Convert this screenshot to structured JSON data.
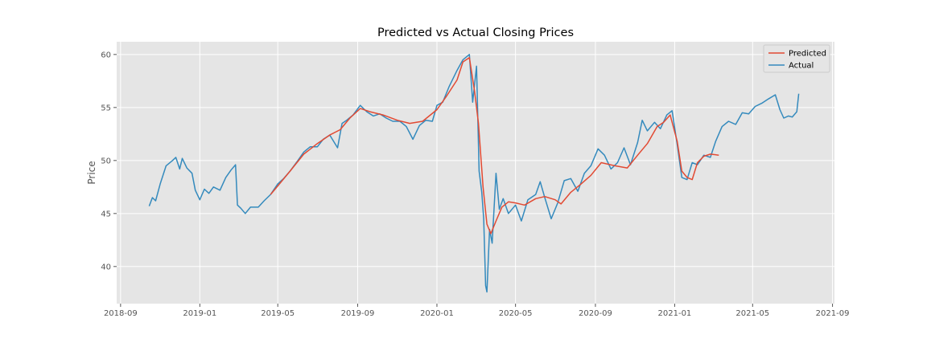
{
  "chart_data": {
    "type": "line",
    "title": "Predicted vs Actual Closing Prices",
    "xlabel": "",
    "ylabel": "Price",
    "xlim": [
      "2018-08-26",
      "2021-09-04"
    ],
    "ylim": [
      36.5,
      61.2
    ],
    "x_ticks": [
      "2018-09",
      "2019-01",
      "2019-05",
      "2019-09",
      "2020-01",
      "2020-05",
      "2020-09",
      "2021-01",
      "2021-05",
      "2021-09"
    ],
    "y_ticks": [
      40,
      45,
      50,
      55,
      60
    ],
    "grid": true,
    "legend_position": "top-right",
    "colors": {
      "background": "#e5e5e5",
      "grid": "#ffffff",
      "predicted": "#e24a33",
      "actual": "#348abd"
    },
    "series": [
      {
        "name": "Predicted",
        "color": "#e24a33",
        "points": [
          [
            "2019-04-20",
            46.8
          ],
          [
            "2019-05-01",
            47.6
          ],
          [
            "2019-05-20",
            49.0
          ],
          [
            "2019-06-10",
            50.6
          ],
          [
            "2019-07-01",
            51.6
          ],
          [
            "2019-07-20",
            52.4
          ],
          [
            "2019-08-05",
            52.9
          ],
          [
            "2019-08-20",
            54.0
          ],
          [
            "2019-09-05",
            54.9
          ],
          [
            "2019-09-20",
            54.6
          ],
          [
            "2019-10-10",
            54.3
          ],
          [
            "2019-11-01",
            53.8
          ],
          [
            "2019-11-20",
            53.5
          ],
          [
            "2019-12-10",
            53.7
          ],
          [
            "2020-01-01",
            54.8
          ],
          [
            "2020-01-15",
            56.0
          ],
          [
            "2020-02-01",
            57.6
          ],
          [
            "2020-02-10",
            59.3
          ],
          [
            "2020-02-20",
            59.7
          ],
          [
            "2020-02-28",
            56.5
          ],
          [
            "2020-03-05",
            53.5
          ],
          [
            "2020-03-12",
            47.5
          ],
          [
            "2020-03-18",
            44.0
          ],
          [
            "2020-03-24",
            43.1
          ],
          [
            "2020-04-01",
            44.3
          ],
          [
            "2020-04-10",
            45.6
          ],
          [
            "2020-04-20",
            46.1
          ],
          [
            "2020-05-01",
            46.0
          ],
          [
            "2020-05-15",
            45.8
          ],
          [
            "2020-06-01",
            46.4
          ],
          [
            "2020-06-15",
            46.6
          ],
          [
            "2020-07-01",
            46.3
          ],
          [
            "2020-07-10",
            45.9
          ],
          [
            "2020-07-25",
            47.0
          ],
          [
            "2020-08-10",
            47.8
          ],
          [
            "2020-08-25",
            48.6
          ],
          [
            "2020-09-10",
            49.8
          ],
          [
            "2020-10-01",
            49.5
          ],
          [
            "2020-10-20",
            49.3
          ],
          [
            "2020-11-05",
            50.5
          ],
          [
            "2020-11-20",
            51.6
          ],
          [
            "2020-12-05",
            53.2
          ],
          [
            "2020-12-15",
            53.6
          ],
          [
            "2020-12-25",
            54.3
          ],
          [
            "2021-01-05",
            51.8
          ],
          [
            "2021-01-12",
            49.0
          ],
          [
            "2021-01-20",
            48.4
          ],
          [
            "2021-01-28",
            48.2
          ],
          [
            "2021-02-05",
            49.8
          ],
          [
            "2021-02-15",
            50.4
          ],
          [
            "2021-02-25",
            50.6
          ],
          [
            "2021-03-10",
            50.5
          ]
        ]
      },
      {
        "name": "Actual",
        "color": "#348abd",
        "points": [
          [
            "2018-10-15",
            45.7
          ],
          [
            "2018-10-20",
            46.5
          ],
          [
            "2018-10-25",
            46.2
          ],
          [
            "2018-11-01",
            47.8
          ],
          [
            "2018-11-10",
            49.5
          ],
          [
            "2018-11-20",
            50.0
          ],
          [
            "2018-11-25",
            50.3
          ],
          [
            "2018-12-01",
            49.2
          ],
          [
            "2018-12-05",
            50.2
          ],
          [
            "2018-12-12",
            49.3
          ],
          [
            "2018-12-20",
            48.8
          ],
          [
            "2018-12-25",
            47.2
          ],
          [
            "2019-01-01",
            46.3
          ],
          [
            "2019-01-08",
            47.3
          ],
          [
            "2019-01-15",
            46.9
          ],
          [
            "2019-01-22",
            47.5
          ],
          [
            "2019-02-01",
            47.2
          ],
          [
            "2019-02-10",
            48.4
          ],
          [
            "2019-02-18",
            49.1
          ],
          [
            "2019-02-25",
            49.6
          ],
          [
            "2019-02-28",
            45.8
          ],
          [
            "2019-03-05",
            45.5
          ],
          [
            "2019-03-12",
            45.0
          ],
          [
            "2019-03-20",
            45.6
          ],
          [
            "2019-04-01",
            45.6
          ],
          [
            "2019-04-10",
            46.2
          ],
          [
            "2019-04-20",
            46.8
          ],
          [
            "2019-05-01",
            47.8
          ],
          [
            "2019-05-10",
            48.3
          ],
          [
            "2019-05-20",
            49.0
          ],
          [
            "2019-06-01",
            50.0
          ],
          [
            "2019-06-10",
            50.8
          ],
          [
            "2019-06-20",
            51.3
          ],
          [
            "2019-07-01",
            51.3
          ],
          [
            "2019-07-10",
            52.0
          ],
          [
            "2019-07-20",
            52.4
          ],
          [
            "2019-08-01",
            51.2
          ],
          [
            "2019-08-08",
            53.5
          ],
          [
            "2019-08-15",
            53.8
          ],
          [
            "2019-08-25",
            54.3
          ],
          [
            "2019-09-05",
            55.2
          ],
          [
            "2019-09-15",
            54.6
          ],
          [
            "2019-09-25",
            54.2
          ],
          [
            "2019-10-05",
            54.4
          ],
          [
            "2019-10-15",
            54.0
          ],
          [
            "2019-10-25",
            53.7
          ],
          [
            "2019-11-05",
            53.7
          ],
          [
            "2019-11-15",
            53.2
          ],
          [
            "2019-11-25",
            52.0
          ],
          [
            "2019-12-05",
            53.3
          ],
          [
            "2019-12-15",
            53.8
          ],
          [
            "2019-12-25",
            53.7
          ],
          [
            "2020-01-01",
            55.2
          ],
          [
            "2020-01-10",
            55.5
          ],
          [
            "2020-01-20",
            57.0
          ],
          [
            "2020-02-01",
            58.5
          ],
          [
            "2020-02-10",
            59.5
          ],
          [
            "2020-02-20",
            60.0
          ],
          [
            "2020-02-25",
            55.5
          ],
          [
            "2020-03-02",
            58.9
          ],
          [
            "2020-03-06",
            49.0
          ],
          [
            "2020-03-10",
            47.0
          ],
          [
            "2020-03-13",
            44.5
          ],
          [
            "2020-03-16",
            38.2
          ],
          [
            "2020-03-18",
            37.6
          ],
          [
            "2020-03-22",
            43.5
          ],
          [
            "2020-03-26",
            42.2
          ],
          [
            "2020-04-01",
            48.8
          ],
          [
            "2020-04-06",
            45.4
          ],
          [
            "2020-04-12",
            46.4
          ],
          [
            "2020-04-20",
            45.0
          ],
          [
            "2020-05-01",
            45.8
          ],
          [
            "2020-05-10",
            44.3
          ],
          [
            "2020-05-20",
            46.3
          ],
          [
            "2020-06-01",
            46.8
          ],
          [
            "2020-06-08",
            48.0
          ],
          [
            "2020-06-15",
            46.5
          ],
          [
            "2020-06-25",
            44.5
          ],
          [
            "2020-07-05",
            46.0
          ],
          [
            "2020-07-15",
            48.1
          ],
          [
            "2020-07-25",
            48.3
          ],
          [
            "2020-08-05",
            47.1
          ],
          [
            "2020-08-15",
            48.8
          ],
          [
            "2020-08-25",
            49.5
          ],
          [
            "2020-09-05",
            51.1
          ],
          [
            "2020-09-15",
            50.5
          ],
          [
            "2020-09-25",
            49.2
          ],
          [
            "2020-10-05",
            49.8
          ],
          [
            "2020-10-15",
            51.2
          ],
          [
            "2020-10-25",
            49.6
          ],
          [
            "2020-11-05",
            51.7
          ],
          [
            "2020-11-12",
            53.8
          ],
          [
            "2020-11-20",
            52.8
          ],
          [
            "2020-12-01",
            53.6
          ],
          [
            "2020-12-10",
            53.0
          ],
          [
            "2020-12-20",
            54.3
          ],
          [
            "2020-12-28",
            54.7
          ],
          [
            "2021-01-05",
            51.5
          ],
          [
            "2021-01-12",
            48.4
          ],
          [
            "2021-01-20",
            48.2
          ],
          [
            "2021-01-28",
            49.8
          ],
          [
            "2021-02-05",
            49.6
          ],
          [
            "2021-02-15",
            50.5
          ],
          [
            "2021-02-25",
            50.3
          ],
          [
            "2021-03-05",
            51.8
          ],
          [
            "2021-03-15",
            53.2
          ],
          [
            "2021-03-25",
            53.7
          ],
          [
            "2021-04-05",
            53.4
          ],
          [
            "2021-04-15",
            54.5
          ],
          [
            "2021-04-25",
            54.4
          ],
          [
            "2021-05-05",
            55.1
          ],
          [
            "2021-05-15",
            55.4
          ],
          [
            "2021-05-25",
            55.8
          ],
          [
            "2021-06-05",
            56.2
          ],
          [
            "2021-06-12",
            54.8
          ],
          [
            "2021-06-18",
            54.0
          ],
          [
            "2021-06-25",
            54.2
          ],
          [
            "2021-07-01",
            54.1
          ],
          [
            "2021-07-08",
            54.6
          ],
          [
            "2021-07-11",
            56.3
          ]
        ]
      }
    ]
  }
}
